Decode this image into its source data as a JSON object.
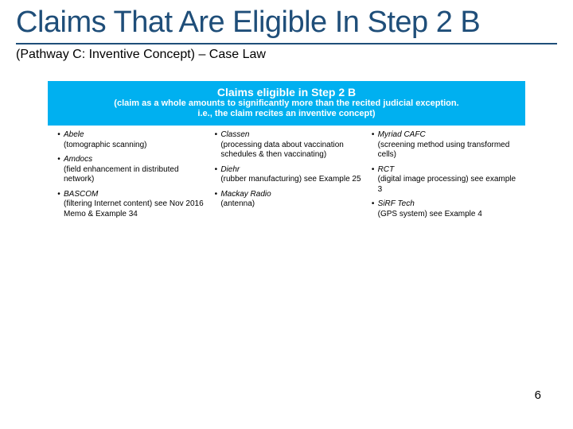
{
  "title": "Claims That Are Eligible In Step 2 B",
  "subtitle": "(Pathway C: Inventive Concept) – Case Law",
  "colors": {
    "title_color": "#1f4e79",
    "header_bg": "#00b0f0",
    "header_text": "#ffffff",
    "body_text": "#000000",
    "background": "#ffffff"
  },
  "box": {
    "header_title": "Claims eligible in Step 2 B",
    "header_sub_line1": "(claim as a whole amounts to significantly more than the recited judicial exception.",
    "header_sub_line2": "i.e., the claim recites an inventive concept)"
  },
  "columns": [
    [
      {
        "name": "Abele",
        "desc": "(tomographic scanning)"
      },
      {
        "name": "Amdocs",
        "desc": "(field enhancement in distributed network)"
      },
      {
        "name": "BASCOM",
        "desc": "(filtering Internet content) see Nov 2016 Memo & Example 34"
      }
    ],
    [
      {
        "name": "Classen",
        "desc": "(processing data about vaccination schedules & then vaccinating)"
      },
      {
        "name": "Diehr",
        "desc": "(rubber manufacturing) see Example 25"
      },
      {
        "name": "Mackay Radio",
        "desc": "(antenna)"
      }
    ],
    [
      {
        "name": "Myriad CAFC",
        "desc": "(screening method using transformed cells)"
      },
      {
        "name": "RCT",
        "desc": "(digital image processing) see example 3"
      },
      {
        "name": "SiRF Tech",
        "desc": "(GPS system) see Example 4"
      }
    ]
  ],
  "page_number": "6"
}
